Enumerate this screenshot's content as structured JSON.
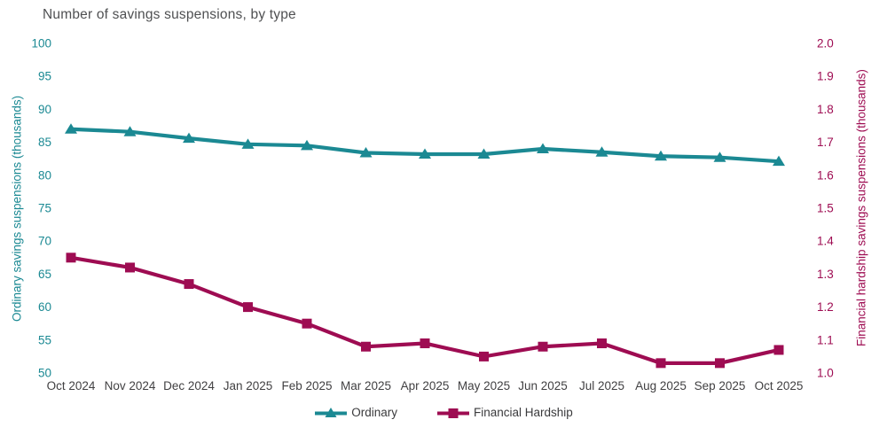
{
  "chart_data": {
    "type": "line",
    "title": "Number of savings suspensions, by type",
    "grid": false,
    "legend_position": "bottom-center",
    "categories": [
      "Oct 2024",
      "Nov 2024",
      "Dec 2024",
      "Jan 2025",
      "Feb 2025",
      "Mar 2025",
      "Apr 2025",
      "May 2025",
      "Jun 2025",
      "Jul 2025",
      "Aug 2025",
      "Sep 2025",
      "Oct 2025"
    ],
    "series": [
      {
        "name": "Ordinary",
        "axis": "left",
        "marker": "triangle",
        "color": "#1b8993",
        "values": [
          87.0,
          86.6,
          85.6,
          84.7,
          84.5,
          83.4,
          83.2,
          83.2,
          84.0,
          83.5,
          82.9,
          82.7,
          82.1
        ]
      },
      {
        "name": "Financial Hardship",
        "axis": "right",
        "marker": "square",
        "color": "#9e0c52",
        "values": [
          1.35,
          1.32,
          1.27,
          1.2,
          1.15,
          1.08,
          1.09,
          1.05,
          1.08,
          1.09,
          1.03,
          1.03,
          1.07
        ]
      }
    ],
    "left_axis": {
      "label": "Ordinary savings suspensions (thousands)",
      "min": 50,
      "max": 100,
      "tick_labels": [
        "50",
        "55",
        "60",
        "65",
        "70",
        "75",
        "80",
        "85",
        "90",
        "95",
        "100"
      ],
      "color": "#1b8993"
    },
    "right_axis": {
      "label": "Financial hardship savings suspensions (thousands)",
      "min": 1.0,
      "max": 2.0,
      "tick_labels": [
        "1.0",
        "1.1",
        "1.2",
        "1.3",
        "1.4",
        "1.5",
        "1.6",
        "1.7",
        "1.8",
        "1.9",
        "2.0"
      ],
      "color": "#9e0c52"
    },
    "x_axis": {
      "color": "#414042"
    },
    "title_color": "#4f5052"
  }
}
